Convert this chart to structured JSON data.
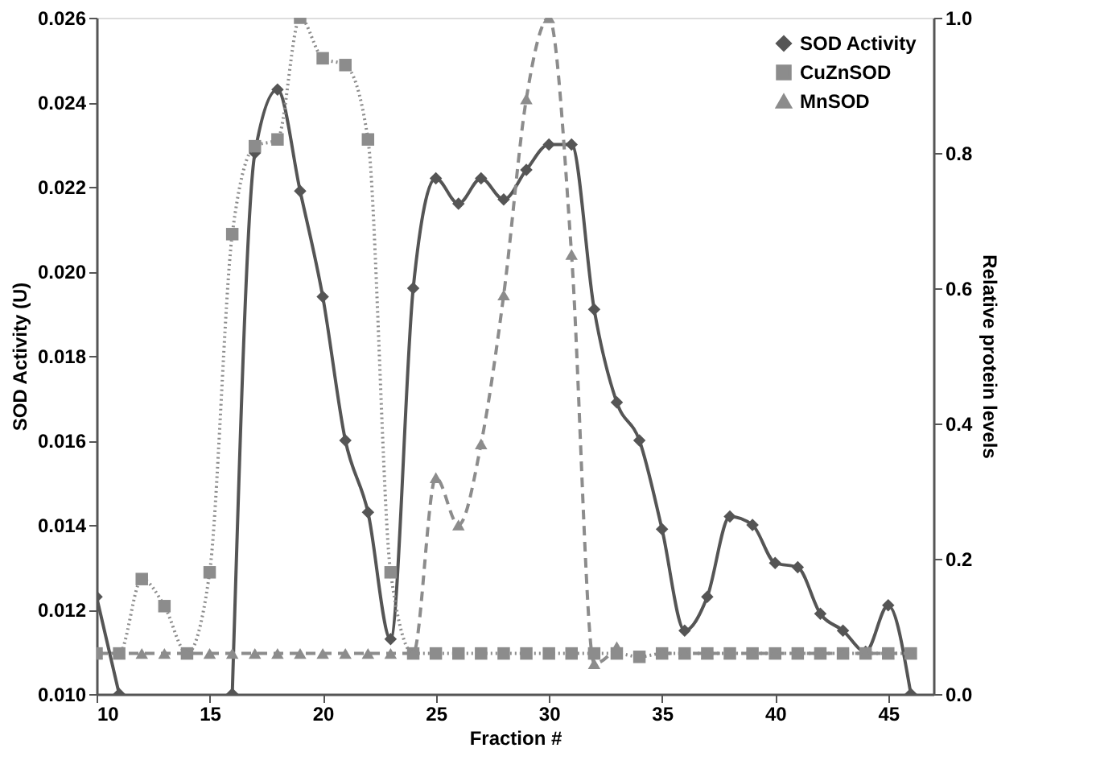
{
  "chart_data": {
    "type": "line",
    "xlabel": "Fraction #",
    "ylabel": "SOD Activity (U)",
    "y2label": "Relative protein levels",
    "x": [
      10,
      11,
      12,
      13,
      14,
      15,
      16,
      17,
      18,
      19,
      20,
      21,
      22,
      23,
      24,
      25,
      26,
      27,
      28,
      29,
      30,
      31,
      32,
      33,
      34,
      35,
      36,
      37,
      38,
      39,
      40,
      41,
      42,
      43,
      44,
      45,
      46
    ],
    "series": [
      {
        "name": "SOD Activity",
        "color": "#555555",
        "marker": "diamond",
        "line_style": "solid",
        "values": [
          0.0123,
          0.01,
          null,
          null,
          null,
          null,
          0.01,
          0.0228,
          0.0243,
          0.0219,
          0.0194,
          0.016,
          0.0143,
          0.0113,
          0.0196,
          0.0222,
          0.0216,
          0.0222,
          0.0217,
          0.0224,
          0.023,
          0.023,
          0.0191,
          0.0169,
          0.016,
          0.0139,
          0.0115,
          0.0123,
          0.0142,
          0.014,
          0.0131,
          0.013,
          0.0119,
          0.0115,
          0.011,
          0.0121,
          0.01
        ]
      },
      {
        "name": "CuZnSOD",
        "color": "#8c8c8c",
        "marker": "square",
        "line_style": "dotted",
        "axis": "y2",
        "values": [
          0.06,
          0.06,
          0.17,
          0.13,
          0.06,
          0.18,
          0.68,
          0.81,
          0.82,
          1.0,
          0.94,
          0.93,
          0.82,
          0.18,
          0.06,
          0.06,
          0.06,
          0.06,
          0.06,
          0.06,
          0.06,
          0.06,
          0.06,
          0.06,
          0.055,
          0.06,
          0.06,
          0.06,
          0.06,
          0.06,
          0.06,
          0.06,
          0.06,
          0.06,
          0.06,
          0.06,
          0.06
        ]
      },
      {
        "name": "MnSOD",
        "color": "#8c8c8c",
        "marker": "triangle",
        "line_style": "dashed",
        "axis": "y2",
        "values": [
          0.06,
          0.06,
          0.06,
          0.06,
          0.06,
          0.06,
          0.06,
          0.06,
          0.06,
          0.06,
          0.06,
          0.06,
          0.06,
          0.06,
          0.06,
          0.32,
          0.25,
          0.37,
          0.59,
          0.88,
          1.0,
          0.65,
          0.045,
          0.07,
          null,
          0.06,
          0.06,
          0.06,
          0.06,
          0.06,
          0.06,
          0.06,
          0.06,
          0.06,
          0.06,
          0.06,
          0.06
        ]
      }
    ],
    "xlim": [
      10,
      47
    ],
    "xticks": [
      10,
      15,
      20,
      25,
      30,
      35,
      40,
      45
    ],
    "ylim": [
      0.01,
      0.026
    ],
    "yticks": [
      {
        "value": 0.01,
        "label": "0.010"
      },
      {
        "value": 0.012,
        "label": "0.012"
      },
      {
        "value": 0.014,
        "label": "0.014"
      },
      {
        "value": 0.016,
        "label": "0.016"
      },
      {
        "value": 0.018,
        "label": "0.018"
      },
      {
        "value": 0.02,
        "label": "0.020"
      },
      {
        "value": 0.022,
        "label": "0.022"
      },
      {
        "value": 0.024,
        "label": "0.024"
      },
      {
        "value": 0.026,
        "label": "0.026"
      }
    ],
    "y2lim": [
      0,
      1.0
    ],
    "y2ticks": [
      {
        "value": 0,
        "label": "0.0"
      },
      0.2,
      0.4,
      0.6,
      0.8,
      {
        "value": 1.0,
        "label": "1.0"
      }
    ],
    "grid": false,
    "legend": "top right"
  }
}
